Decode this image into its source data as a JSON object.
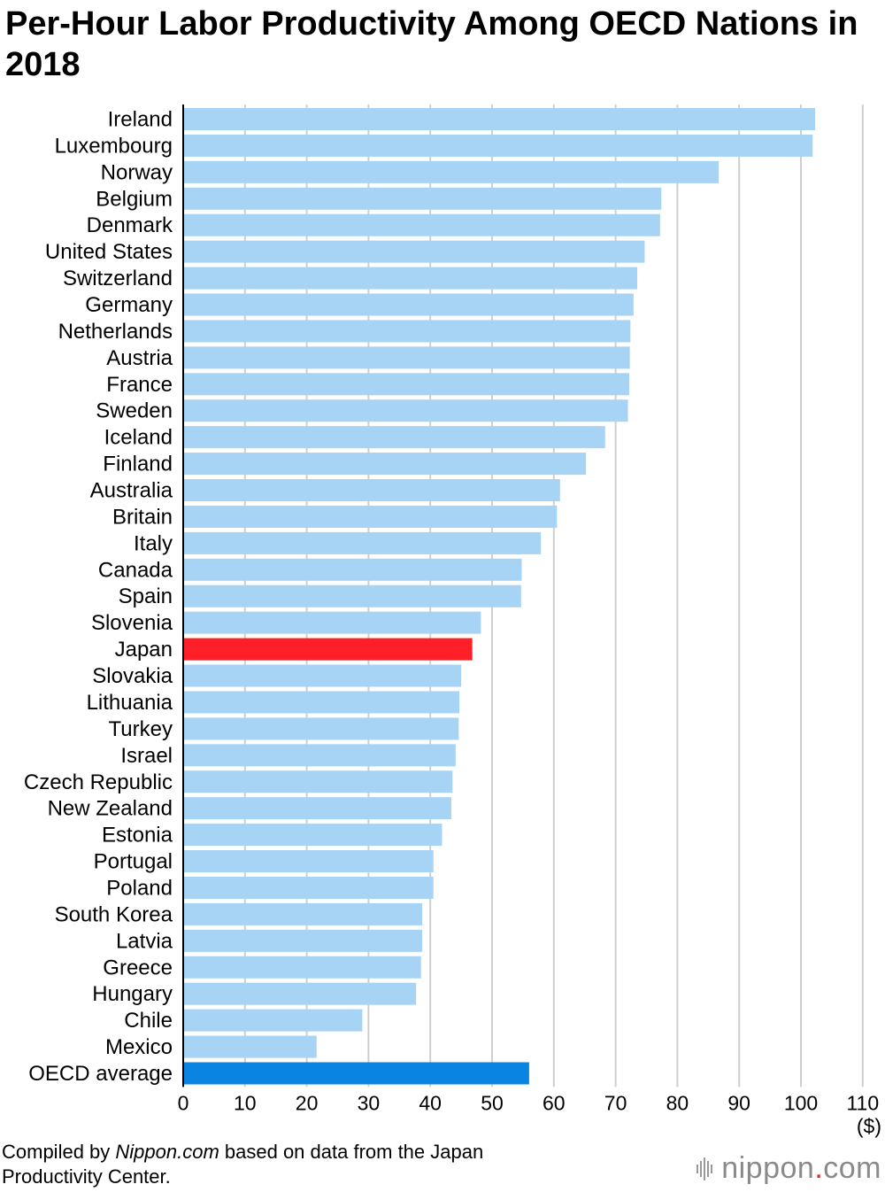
{
  "title": "Per-Hour Labor Productivity Among OECD Nations in 2018",
  "footer": {
    "prefix": "Compiled by ",
    "source_name": "Nippon.com",
    "suffix": " based on data from the Japan Productivity Center."
  },
  "logo": {
    "name": "nippon",
    "dot": ".",
    "tld": "com"
  },
  "colors": {
    "bar_default": "#a7d3f5",
    "bar_japan": "#ff1f28",
    "bar_average": "#0a84e1",
    "grid": "#cfcfcf",
    "axis": "#000000"
  },
  "chart_data": {
    "type": "bar",
    "orientation": "horizontal",
    "title": "Per-Hour Labor Productivity Among OECD Nations in 2018",
    "xlabel": "($)",
    "ylabel": "",
    "xlim": [
      0,
      110
    ],
    "xticks": [
      0,
      10,
      20,
      30,
      40,
      50,
      60,
      70,
      80,
      90,
      100,
      110
    ],
    "grid": true,
    "highlight": {
      "Japan": "bar_japan",
      "OECD average": "bar_average"
    },
    "categories": [
      "Ireland",
      "Luxembourg",
      "Norway",
      "Belgium",
      "Denmark",
      "United States",
      "Switzerland",
      "Germany",
      "Netherlands",
      "Austria",
      "France",
      "Sweden",
      "Iceland",
      "Finland",
      "Australia",
      "Britain",
      "Italy",
      "Canada",
      "Spain",
      "Slovenia",
      "Japan",
      "Slovakia",
      "Lithuania",
      "Turkey",
      "Israel",
      "Czech Republic",
      "New Zealand",
      "Estonia",
      "Portugal",
      "Poland",
      "South Korea",
      "Latvia",
      "Greece",
      "Hungary",
      "Chile",
      "Mexico",
      "OECD average"
    ],
    "values": [
      102.3,
      101.9,
      86.7,
      77.4,
      77.2,
      74.7,
      73.5,
      72.9,
      72.4,
      72.3,
      72.2,
      72.0,
      68.3,
      65.2,
      61.0,
      60.5,
      57.9,
      54.8,
      54.7,
      48.2,
      46.8,
      45.0,
      44.7,
      44.6,
      44.1,
      43.6,
      43.4,
      41.9,
      40.5,
      40.5,
      38.7,
      38.7,
      38.5,
      37.7,
      29.0,
      21.6,
      56.0
    ]
  }
}
